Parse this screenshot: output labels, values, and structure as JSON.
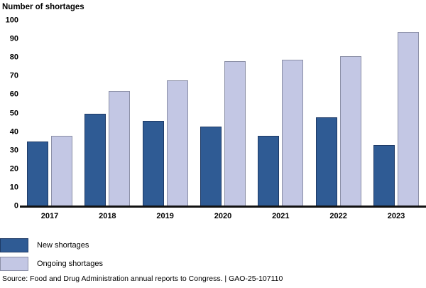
{
  "title": "Number of shortages",
  "chart_data": {
    "type": "bar",
    "title": "Number of shortages",
    "categories": [
      "2017",
      "2018",
      "2019",
      "2020",
      "2021",
      "2022",
      "2023"
    ],
    "series": [
      {
        "name": "New shortages",
        "color": "#2F5B94",
        "border_color": "#1E3A66",
        "values": [
          35,
          50,
          46,
          43,
          38,
          48,
          33
        ]
      },
      {
        "name": "Ongoing shortages",
        "color": "#C3C7E4",
        "border_color": "#8B8FA6",
        "values": [
          38,
          62,
          68,
          78,
          79,
          81,
          94
        ]
      }
    ],
    "xlabel": "",
    "ylabel": "Number of shortages",
    "ylim": [
      0,
      100
    ],
    "ytick_step": 10,
    "ytick_labels": [
      "0",
      "10",
      "20",
      "30",
      "40",
      "50",
      "60",
      "70",
      "80",
      "90",
      "100"
    ],
    "grid": false,
    "legend_position": "bottom-left"
  },
  "legend": {
    "items": [
      {
        "label": "New shortages"
      },
      {
        "label": "Ongoing shortages"
      }
    ]
  },
  "footer": {
    "source_text": "Source: Food and Drug Administration annual reports to Congress.  |  GAO-25-107110"
  }
}
